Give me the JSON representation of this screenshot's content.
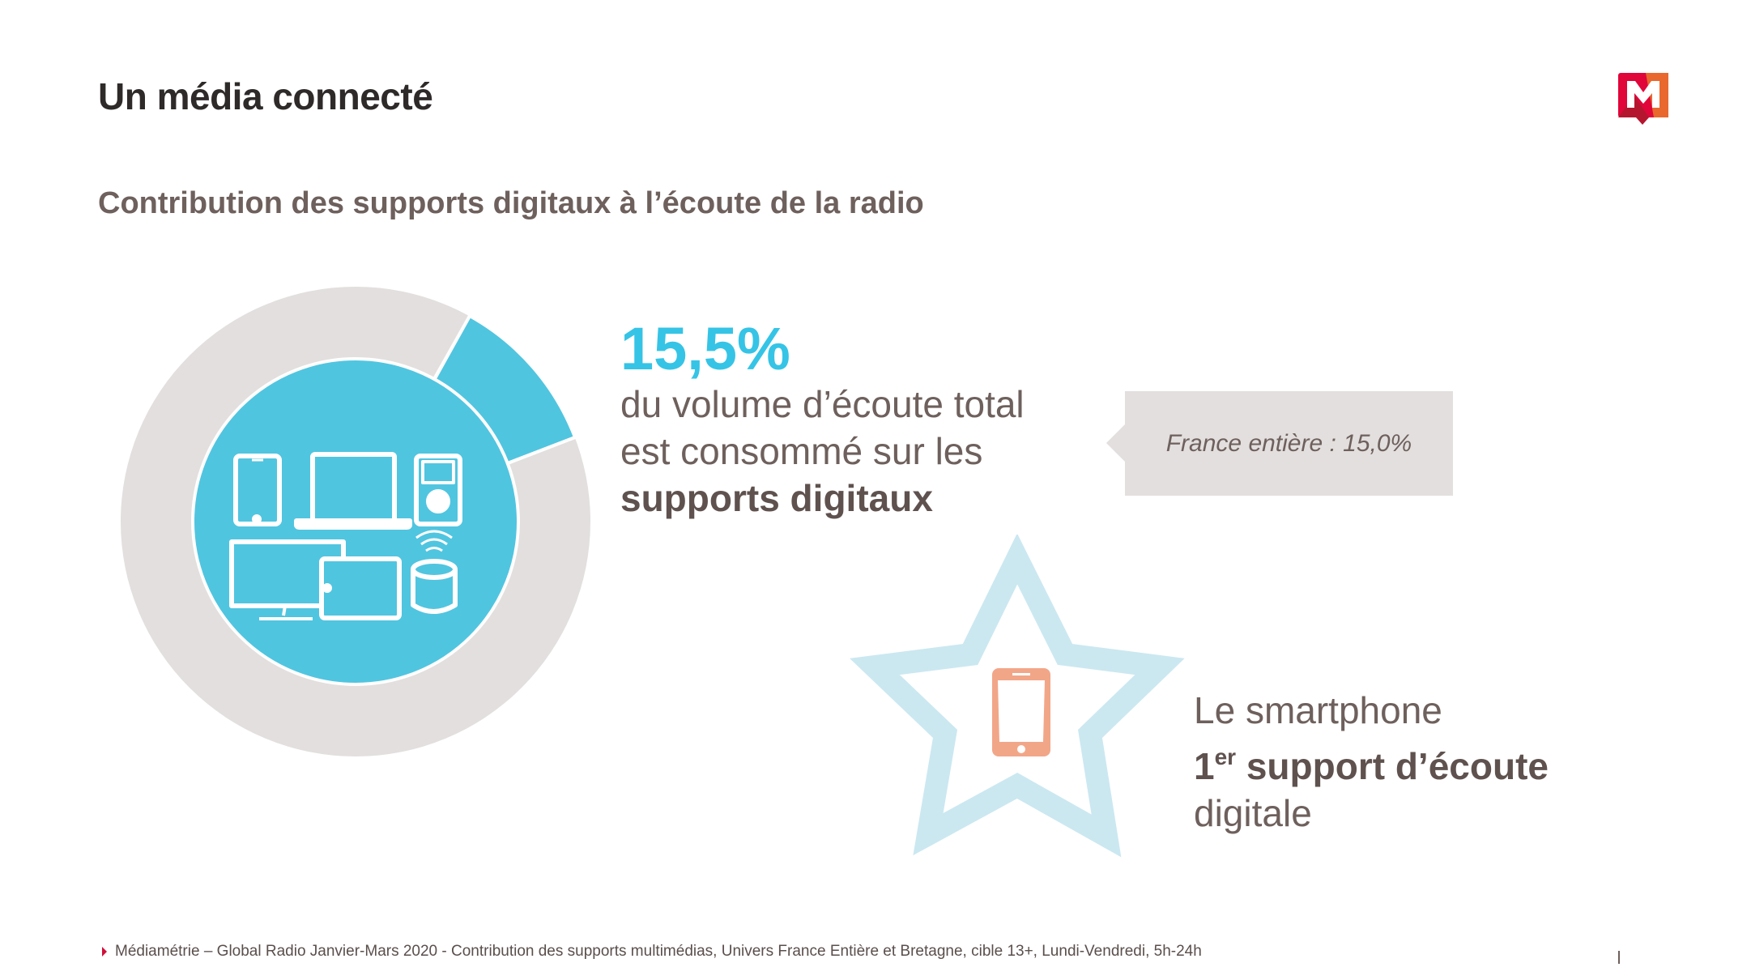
{
  "header": {
    "title": "Un média connecté",
    "logo_text": "M"
  },
  "subtitle": "Contribution des supports digitaux à l’écoute de la radio",
  "highlight": {
    "value": "15,5%",
    "line1": "du volume d’écoute total",
    "line2": "est consommé sur les",
    "line3_bold": "supports digitaux"
  },
  "callout": {
    "text": "France entière : 15,0%"
  },
  "smartphone": {
    "line1": "Le smartphone",
    "rank": "1",
    "rank_sup": "er",
    "line2_bold": " support d’écoute",
    "line3": "digitale"
  },
  "footer": {
    "source": "Médiamétrie – Global Radio Janvier-Mars 2020 - Contribution des supports multimédias, Univers France Entière et Bretagne, cible 13+, Lundi-Vendredi, 5h-24h"
  },
  "colors": {
    "accent": "#35c4e6",
    "ring": "#e2dfde",
    "star": "#cbe8f1",
    "phone": "#f2a688",
    "brand_red": "#d0103a",
    "brand_orange": "#e8682e"
  }
}
